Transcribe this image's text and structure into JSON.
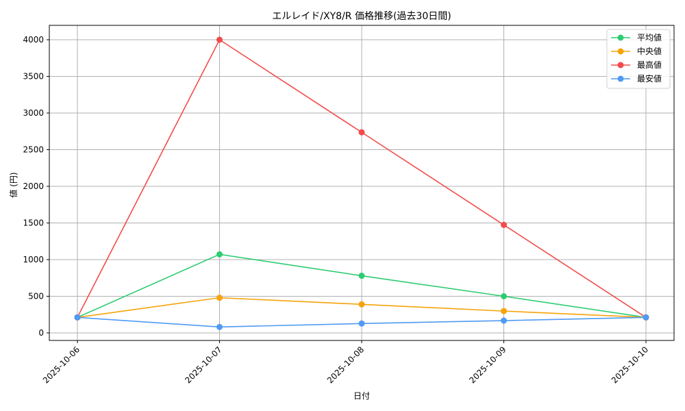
{
  "chart_data": {
    "type": "line",
    "title": "エルレイド/XY8/R 価格推移(過去30日間)",
    "xlabel": "日付",
    "ylabel": "値 (円)",
    "categories": [
      "2025-10-06",
      "2025-10-07",
      "2025-10-08",
      "2025-10-09",
      "2025-10-10"
    ],
    "ylim": [
      -100,
      4200
    ],
    "yticks": [
      0,
      500,
      1000,
      1500,
      2000,
      2500,
      3000,
      3500,
      4000
    ],
    "grid": true,
    "legend_position": "upper right",
    "series": [
      {
        "name": "平均値",
        "color": "#2ecc71",
        "values": [
          212,
          1072,
          780,
          500,
          212
        ]
      },
      {
        "name": "中央値",
        "color": "#f5a30a",
        "values": [
          212,
          480,
          390,
          298,
          212
        ]
      },
      {
        "name": "最高値",
        "color": "#f24b4b",
        "values": [
          212,
          4000,
          2737,
          1474,
          212
        ]
      },
      {
        "name": "最安値",
        "color": "#4f9af2",
        "values": [
          212,
          81,
          128,
          168,
          212
        ]
      }
    ]
  }
}
